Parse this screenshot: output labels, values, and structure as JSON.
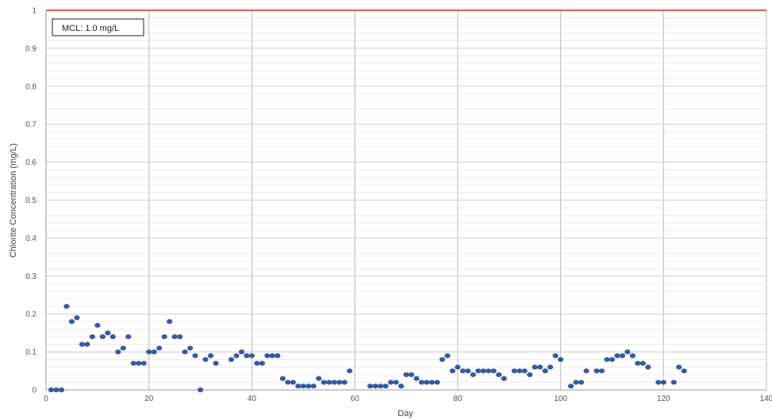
{
  "chart_data": {
    "type": "scatter",
    "xlabel": "Day",
    "ylabel": "Chlorite Concentration (mg/L)",
    "xlim": [
      0,
      140
    ],
    "ylim": [
      0,
      1
    ],
    "x_ticks": [
      0,
      20,
      40,
      60,
      80,
      100,
      120,
      140
    ],
    "y_ticks": [
      0,
      0.1,
      0.2,
      0.3,
      0.4,
      0.5,
      0.6,
      0.7,
      0.8,
      0.9,
      1
    ],
    "x_tick_labels": [
      "0",
      "20",
      "40",
      "60",
      "80",
      "100",
      "120",
      "140"
    ],
    "y_tick_labels": [
      "0",
      "0.1",
      "0.2",
      "0.3",
      "0.4",
      "0.5",
      "0.6",
      "0.7",
      "0.8",
      "0.9",
      "1"
    ],
    "grid": {
      "major": true,
      "minor_horizontal": true
    },
    "reference_line": {
      "label": "MCL: 1.0 mg/L",
      "y": 1.0,
      "color": "#e06060"
    },
    "marker_color": "#3a5a9e",
    "points": [
      [
        1,
        0
      ],
      [
        2,
        0
      ],
      [
        3,
        0
      ],
      [
        4,
        0.22
      ],
      [
        5,
        0.18
      ],
      [
        6,
        0.19
      ],
      [
        7,
        0.12
      ],
      [
        8,
        0.12
      ],
      [
        9,
        0.14
      ],
      [
        10,
        0.17
      ],
      [
        11,
        0.14
      ],
      [
        12,
        0.15
      ],
      [
        13,
        0.14
      ],
      [
        14,
        0.1
      ],
      [
        15,
        0.11
      ],
      [
        16,
        0.14
      ],
      [
        17,
        0.07
      ],
      [
        18,
        0.07
      ],
      [
        19,
        0.07
      ],
      [
        20,
        0.1
      ],
      [
        21,
        0.1
      ],
      [
        22,
        0.11
      ],
      [
        23,
        0.14
      ],
      [
        24,
        0.18
      ],
      [
        25,
        0.14
      ],
      [
        26,
        0.14
      ],
      [
        27,
        0.1
      ],
      [
        28,
        0.11
      ],
      [
        29,
        0.09
      ],
      [
        30,
        0
      ],
      [
        31,
        0.08
      ],
      [
        32,
        0.09
      ],
      [
        33,
        0.07
      ],
      [
        36,
        0.08
      ],
      [
        37,
        0.09
      ],
      [
        38,
        0.1
      ],
      [
        39,
        0.09
      ],
      [
        40,
        0.09
      ],
      [
        41,
        0.07
      ],
      [
        42,
        0.07
      ],
      [
        43,
        0.09
      ],
      [
        44,
        0.09
      ],
      [
        45,
        0.09
      ],
      [
        46,
        0.03
      ],
      [
        47,
        0.02
      ],
      [
        48,
        0.02
      ],
      [
        49,
        0.01
      ],
      [
        50,
        0.01
      ],
      [
        51,
        0.01
      ],
      [
        52,
        0.01
      ],
      [
        53,
        0.03
      ],
      [
        54,
        0.02
      ],
      [
        55,
        0.02
      ],
      [
        56,
        0.02
      ],
      [
        57,
        0.02
      ],
      [
        58,
        0.02
      ],
      [
        59,
        0.05
      ],
      [
        63,
        0.01
      ],
      [
        64,
        0.01
      ],
      [
        65,
        0.01
      ],
      [
        66,
        0.01
      ],
      [
        67,
        0.02
      ],
      [
        68,
        0.02
      ],
      [
        69,
        0.01
      ],
      [
        70,
        0.04
      ],
      [
        71,
        0.04
      ],
      [
        72,
        0.03
      ],
      [
        73,
        0.02
      ],
      [
        74,
        0.02
      ],
      [
        75,
        0.02
      ],
      [
        76,
        0.02
      ],
      [
        77,
        0.08
      ],
      [
        78,
        0.09
      ],
      [
        79,
        0.05
      ],
      [
        80,
        0.06
      ],
      [
        81,
        0.05
      ],
      [
        82,
        0.05
      ],
      [
        83,
        0.04
      ],
      [
        84,
        0.05
      ],
      [
        85,
        0.05
      ],
      [
        86,
        0.05
      ],
      [
        87,
        0.05
      ],
      [
        88,
        0.04
      ],
      [
        89,
        0.03
      ],
      [
        91,
        0.05
      ],
      [
        92,
        0.05
      ],
      [
        93,
        0.05
      ],
      [
        94,
        0.04
      ],
      [
        95,
        0.06
      ],
      [
        96,
        0.06
      ],
      [
        97,
        0.05
      ],
      [
        98,
        0.06
      ],
      [
        99,
        0.09
      ],
      [
        100,
        0.08
      ],
      [
        102,
        0.01
      ],
      [
        103,
        0.02
      ],
      [
        104,
        0.02
      ],
      [
        105,
        0.05
      ],
      [
        107,
        0.05
      ],
      [
        108,
        0.05
      ],
      [
        109,
        0.08
      ],
      [
        110,
        0.08
      ],
      [
        111,
        0.09
      ],
      [
        112,
        0.09
      ],
      [
        113,
        0.1
      ],
      [
        114,
        0.09
      ],
      [
        115,
        0.07
      ],
      [
        116,
        0.07
      ],
      [
        117,
        0.06
      ],
      [
        119,
        0.02
      ],
      [
        120,
        0.02
      ],
      [
        122,
        0.02
      ],
      [
        123,
        0.06
      ],
      [
        124,
        0.05
      ]
    ]
  }
}
